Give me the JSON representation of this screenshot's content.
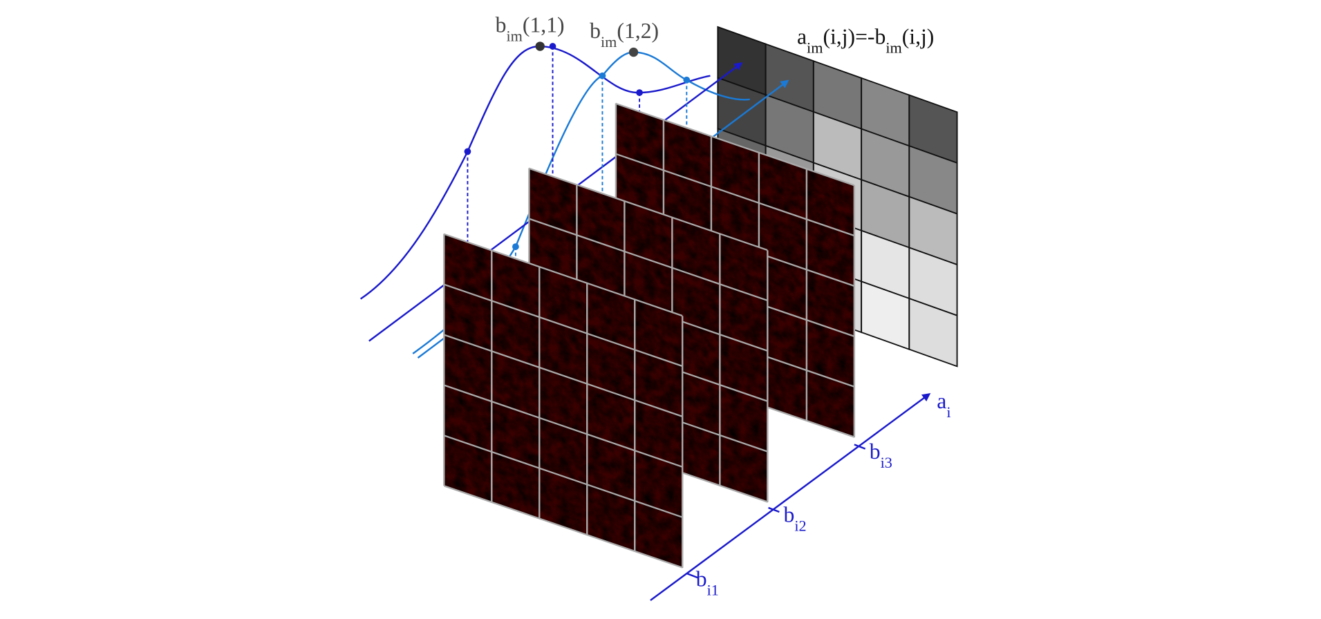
{
  "labels": {
    "b11": {
      "base": "b",
      "sub": "im",
      "rest": "(1,1)"
    },
    "b12": {
      "base": "b",
      "sub": "im",
      "rest": "(1,2)"
    },
    "aij": {
      "base": "a",
      "sub": "im",
      "mid": "(i,j)=-b",
      "sub2": "im",
      "rest": "(i,j)"
    },
    "ai": {
      "base": "a",
      "sub": "i"
    },
    "bi1": {
      "base": "b",
      "sub": "i1"
    },
    "bi2": {
      "base": "b",
      "sub": "i2"
    },
    "bi3": {
      "base": "b",
      "sub": "i3"
    }
  }
}
